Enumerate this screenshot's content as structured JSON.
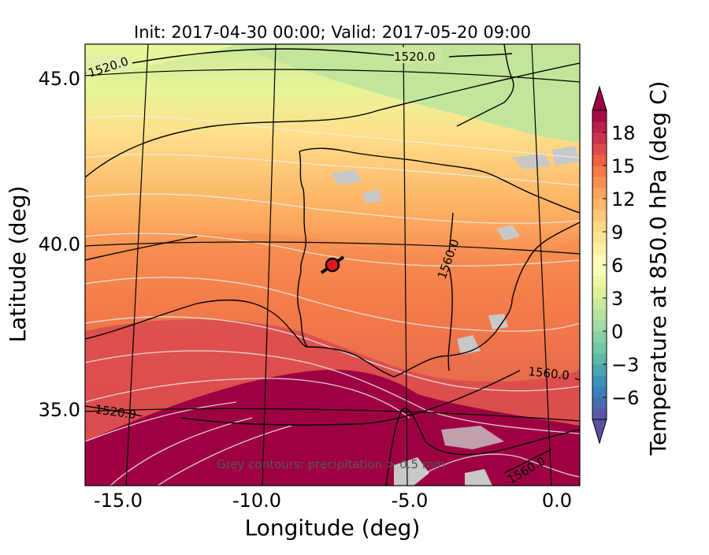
{
  "title": "Init: 2017-04-30 00:00; Valid: 2017-05-20 09:00",
  "xlabel": "Longitude (deg)",
  "ylabel": "Latitude (deg)",
  "x_ticks": [
    "-15.0",
    "-10.0",
    "-5.0",
    "0.0"
  ],
  "y_ticks": [
    "45.0",
    "40.0",
    "35.0"
  ],
  "colorbar": {
    "label": "Temperature at 850.0 hPa (deg C)",
    "ticks": [
      "18",
      "15",
      "12",
      "9",
      "6",
      "3",
      "0",
      "−3",
      "−6"
    ],
    "tick_values": [
      18,
      15,
      12,
      9,
      6,
      3,
      0,
      -3,
      -6
    ],
    "range": [
      -8,
      20
    ],
    "palette": "Spectral_r"
  },
  "contour_labels": [
    "1520.0",
    "1520.0",
    "1520.0",
    "1560.0",
    "1560.0",
    "1560.0"
  ],
  "annotation": "Grey contours: precipitation > 0.5 mm",
  "marker": {
    "lon": -7.7,
    "lat": 39.4,
    "color": "#e8141c"
  },
  "colors": {
    "hot": "#9e0142",
    "warm_red": "#d53e4f",
    "orange": "#f46d43",
    "light_orange": "#fdae61",
    "yellow": "#fee08b",
    "pale": "#ffffbf",
    "light_green": "#e6f598",
    "green": "#abdda4",
    "teal": "#66c2a5",
    "blue": "#3288bd",
    "purple": "#5e4fa2",
    "precip_grey": "#c8c8c8"
  }
}
